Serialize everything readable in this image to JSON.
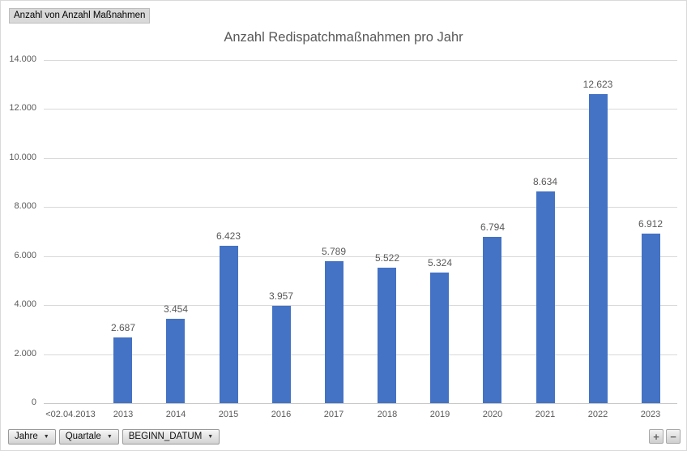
{
  "chart_header": {
    "pivot_field_button": "Anzahl von Anzahl Maßnahmen"
  },
  "chart_data": {
    "type": "bar",
    "title": "Anzahl Redispatchmaßnahmen pro Jahr",
    "categories": [
      "<02.04.2013",
      "2013",
      "2014",
      "2015",
      "2016",
      "2017",
      "2018",
      "2019",
      "2020",
      "2021",
      "2022",
      "2023"
    ],
    "values": [
      0,
      2687,
      3454,
      6423,
      3957,
      5789,
      5522,
      5324,
      6794,
      8634,
      12623,
      6912
    ],
    "value_labels": [
      "",
      "2.687",
      "3.454",
      "6.423",
      "3.957",
      "5.789",
      "5.522",
      "5.324",
      "6.794",
      "8.634",
      "12.623",
      "6.912"
    ],
    "ylim": [
      0,
      14000
    ],
    "ytick_interval": 2000,
    "ytick_labels": [
      "0",
      "2.000",
      "4.000",
      "6.000",
      "8.000",
      "10.000",
      "12.000",
      "14.000"
    ],
    "bar_color": "#4472C4",
    "gridline_color": "#D9D9D9",
    "axis_line_color": "#C9C9C9",
    "grid": true,
    "legend": "none"
  },
  "axis_fields": {
    "buttons": [
      {
        "label": "Jahre"
      },
      {
        "label": "Quartale"
      },
      {
        "label": "BEGINN_DATUM"
      }
    ],
    "dropdown_icon": "▼"
  },
  "expand_collapse": {
    "plus": "+",
    "minus": "−"
  }
}
